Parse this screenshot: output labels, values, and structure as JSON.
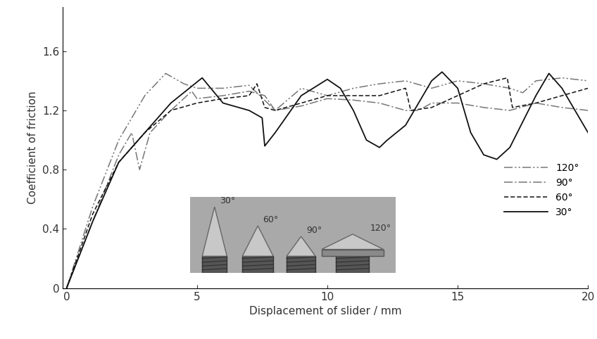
{
  "chart_data": {
    "type": "line",
    "x_label": "Displacement of slider / mm",
    "y_label": "Coefficient of friction",
    "annotations": [
      "30°",
      "60°",
      "90°",
      "120°"
    ],
    "xlim": [
      -0.15,
      20
    ],
    "ylim": [
      0,
      1.9
    ],
    "xticks": [
      0,
      5,
      10,
      15,
      20
    ],
    "yticks": [
      0,
      0.4,
      0.8,
      1.2,
      1.6
    ],
    "grid": false,
    "legend": "lower right",
    "series": [
      {
        "name": "120°",
        "color": "#777777",
        "line_style": "dashdotdotted",
        "x": [
          0,
          1,
          2,
          3,
          3.8,
          4.5,
          5,
          6,
          7,
          8,
          9,
          10,
          11,
          12,
          13,
          14,
          15,
          16,
          17,
          17.5,
          18,
          19,
          20
        ],
        "values": [
          0,
          0.55,
          1.0,
          1.3,
          1.45,
          1.38,
          1.35,
          1.35,
          1.37,
          1.2,
          1.35,
          1.3,
          1.35,
          1.38,
          1.4,
          1.35,
          1.4,
          1.38,
          1.35,
          1.32,
          1.4,
          1.42,
          1.4
        ]
      },
      {
        "name": "90°",
        "color": "#777777",
        "line_style": "dashdot",
        "x": [
          0,
          1,
          2,
          2.5,
          2.8,
          3.2,
          4,
          4.8,
          5,
          6,
          7,
          7.6,
          8,
          9,
          10,
          11,
          12,
          13,
          13.5,
          14,
          15,
          16,
          17,
          18,
          19,
          20
        ],
        "values": [
          0,
          0.45,
          0.9,
          1.05,
          0.8,
          1.05,
          1.2,
          1.33,
          1.28,
          1.3,
          1.33,
          1.3,
          1.2,
          1.23,
          1.28,
          1.27,
          1.25,
          1.2,
          1.2,
          1.25,
          1.25,
          1.22,
          1.2,
          1.25,
          1.22,
          1.2
        ]
      },
      {
        "name": "60°",
        "color": "#111111",
        "line_style": "dashed",
        "x": [
          0,
          1,
          2,
          3,
          4,
          5,
          6,
          7,
          7.3,
          7.6,
          8,
          9,
          10,
          11,
          12,
          13,
          13.2,
          14,
          15,
          16,
          16.9,
          17.1,
          18,
          19,
          20
        ],
        "values": [
          0,
          0.5,
          0.85,
          1.05,
          1.2,
          1.25,
          1.28,
          1.3,
          1.38,
          1.22,
          1.2,
          1.25,
          1.3,
          1.3,
          1.3,
          1.35,
          1.2,
          1.22,
          1.3,
          1.38,
          1.42,
          1.22,
          1.25,
          1.3,
          1.35
        ]
      },
      {
        "name": "30°",
        "color": "#111111",
        "line_style": "solid",
        "x": [
          0,
          1,
          2,
          3,
          4,
          5.2,
          6,
          7,
          7.5,
          7.6,
          8,
          9,
          10,
          10.5,
          11,
          11.5,
          12,
          12.3,
          13,
          14,
          14.4,
          15,
          15.5,
          16,
          16.5,
          17,
          18,
          18.5,
          19,
          19.5,
          20
        ],
        "values": [
          0,
          0.45,
          0.85,
          1.05,
          1.25,
          1.42,
          1.25,
          1.2,
          1.15,
          0.96,
          1.05,
          1.3,
          1.41,
          1.35,
          1.2,
          1.0,
          0.95,
          1.0,
          1.1,
          1.4,
          1.46,
          1.35,
          1.05,
          0.9,
          0.87,
          0.95,
          1.3,
          1.45,
          1.35,
          1.2,
          1.05
        ]
      }
    ]
  }
}
